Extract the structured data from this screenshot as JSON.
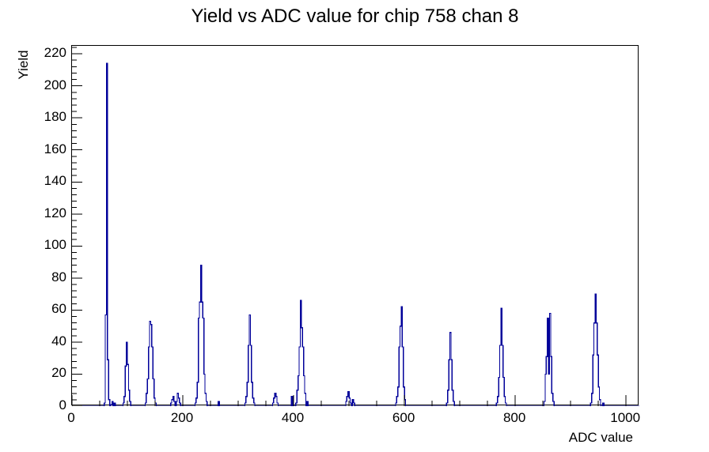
{
  "chart_data": {
    "type": "bar",
    "style": "root-step-histogram",
    "title": "Yield vs ADC value for chip 758 chan 8",
    "xlabel": "ADC value",
    "ylabel": "Yield",
    "xlim": [
      0,
      1024
    ],
    "ylim": [
      0,
      225
    ],
    "grid": false,
    "legend": "none",
    "line_color": "#00009a",
    "axis_color": "#000000",
    "background_color": "#ffffff",
    "x_major_ticks": [
      0,
      200,
      400,
      600,
      800,
      1000
    ],
    "x_tick_labels": [
      "0",
      "200",
      "400",
      "600",
      "800",
      "1000"
    ],
    "x_minor_step": 50,
    "y_major_step": 20,
    "y_minor_step": 4,
    "y_tick_labels": [
      "0",
      "20",
      "40",
      "60",
      "80",
      "100",
      "120",
      "140",
      "160",
      "180",
      "200",
      "220"
    ],
    "bin_width": 2,
    "bins": [
      [
        58,
        2
      ],
      [
        60,
        57
      ],
      [
        62,
        214
      ],
      [
        64,
        29
      ],
      [
        66,
        4
      ],
      [
        70,
        1
      ],
      [
        72,
        3
      ],
      [
        76,
        2
      ],
      [
        92,
        2
      ],
      [
        94,
        6
      ],
      [
        96,
        25
      ],
      [
        98,
        40
      ],
      [
        100,
        26
      ],
      [
        102,
        10
      ],
      [
        104,
        3
      ],
      [
        132,
        2
      ],
      [
        134,
        8
      ],
      [
        136,
        17
      ],
      [
        138,
        37
      ],
      [
        140,
        53
      ],
      [
        142,
        51
      ],
      [
        144,
        37
      ],
      [
        146,
        17
      ],
      [
        148,
        5
      ],
      [
        150,
        2
      ],
      [
        178,
        2
      ],
      [
        180,
        4
      ],
      [
        182,
        6
      ],
      [
        184,
        3
      ],
      [
        188,
        3
      ],
      [
        190,
        8
      ],
      [
        192,
        5
      ],
      [
        194,
        2
      ],
      [
        222,
        2
      ],
      [
        224,
        5
      ],
      [
        226,
        15
      ],
      [
        228,
        55
      ],
      [
        230,
        65
      ],
      [
        232,
        88
      ],
      [
        234,
        65
      ],
      [
        236,
        55
      ],
      [
        238,
        20
      ],
      [
        240,
        8
      ],
      [
        242,
        3
      ],
      [
        264,
        3
      ],
      [
        312,
        2
      ],
      [
        314,
        6
      ],
      [
        316,
        15
      ],
      [
        318,
        38
      ],
      [
        320,
        57
      ],
      [
        322,
        38
      ],
      [
        324,
        15
      ],
      [
        326,
        5
      ],
      [
        328,
        2
      ],
      [
        362,
        2
      ],
      [
        364,
        5
      ],
      [
        366,
        8
      ],
      [
        368,
        6
      ],
      [
        370,
        2
      ],
      [
        396,
        6
      ],
      [
        404,
        2
      ],
      [
        406,
        10
      ],
      [
        408,
        19
      ],
      [
        410,
        37
      ],
      [
        412,
        66
      ],
      [
        414,
        49
      ],
      [
        416,
        37
      ],
      [
        418,
        19
      ],
      [
        420,
        8
      ],
      [
        424,
        3
      ],
      [
        494,
        3
      ],
      [
        496,
        6
      ],
      [
        498,
        9
      ],
      [
        500,
        5
      ],
      [
        502,
        2
      ],
      [
        506,
        4
      ],
      [
        508,
        2
      ],
      [
        584,
        2
      ],
      [
        586,
        6
      ],
      [
        588,
        12
      ],
      [
        590,
        37
      ],
      [
        592,
        50
      ],
      [
        594,
        62
      ],
      [
        596,
        37
      ],
      [
        598,
        12
      ],
      [
        600,
        4
      ],
      [
        676,
        2
      ],
      [
        678,
        10
      ],
      [
        680,
        29
      ],
      [
        682,
        46
      ],
      [
        684,
        29
      ],
      [
        686,
        10
      ],
      [
        688,
        3
      ],
      [
        766,
        2
      ],
      [
        768,
        6
      ],
      [
        770,
        18
      ],
      [
        772,
        38
      ],
      [
        774,
        61
      ],
      [
        776,
        38
      ],
      [
        778,
        18
      ],
      [
        780,
        6
      ],
      [
        782,
        2
      ],
      [
        852,
        3
      ],
      [
        854,
        20
      ],
      [
        856,
        31
      ],
      [
        858,
        55
      ],
      [
        860,
        20
      ],
      [
        862,
        58
      ],
      [
        864,
        31
      ],
      [
        866,
        8
      ],
      [
        868,
        3
      ],
      [
        936,
        2
      ],
      [
        938,
        8
      ],
      [
        940,
        32
      ],
      [
        942,
        52
      ],
      [
        944,
        70
      ],
      [
        946,
        52
      ],
      [
        948,
        32
      ],
      [
        950,
        12
      ],
      [
        952,
        4
      ],
      [
        958,
        2
      ]
    ]
  }
}
